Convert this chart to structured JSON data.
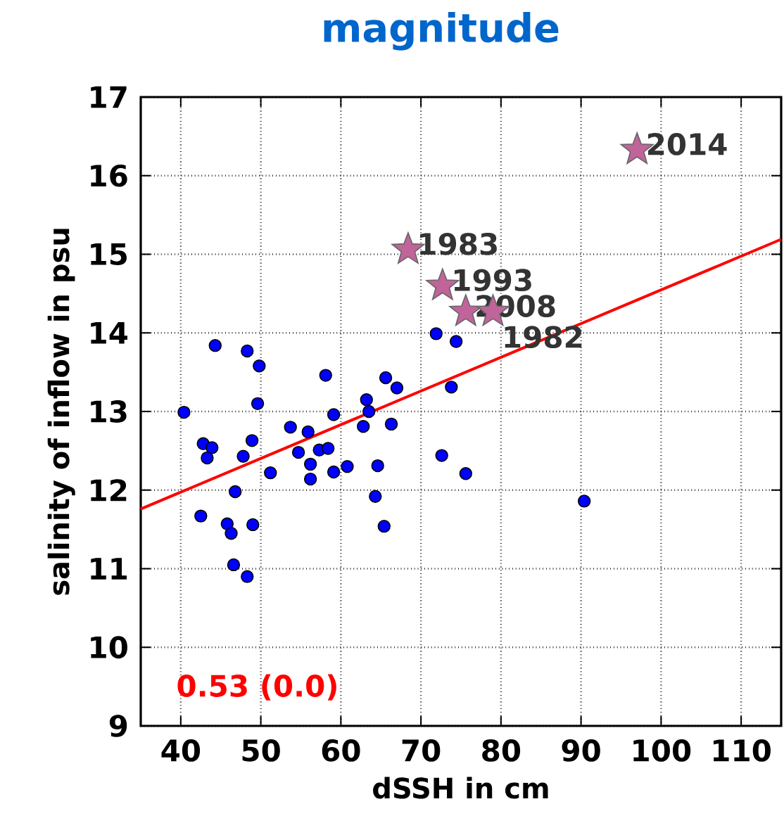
{
  "chart_data": {
    "type": "scatter",
    "title": "magnitude",
    "xlabel": "dSSH in cm",
    "ylabel": "salinity of inflow in psu",
    "xlim": [
      35,
      115
    ],
    "ylim": [
      9,
      17
    ],
    "xticks": [
      40,
      50,
      60,
      70,
      80,
      90,
      100,
      110
    ],
    "yticks": [
      9,
      10,
      11,
      12,
      13,
      14,
      15,
      16,
      17
    ],
    "grid": true,
    "series": [
      {
        "type": "scatter",
        "marker": "circle",
        "color": "#0000ff",
        "x": [
          44.3,
          48.3,
          49.8,
          58.1,
          40.4,
          49.6,
          65.6,
          67.0,
          63.2,
          59.1,
          63.5,
          62.8,
          66.3,
          53.7,
          55.9,
          42.8,
          43.9,
          43.3,
          48.9,
          47.8,
          54.7,
          57.3,
          58.4,
          56.2,
          59.1,
          60.8,
          51.2,
          56.2,
          64.6,
          64.3,
          65.4,
          46.8,
          42.5,
          45.8,
          46.3,
          49.0,
          46.6,
          48.3,
          71.9,
          74.4,
          73.8,
          72.6,
          75.6,
          90.4
        ],
        "values": [
          13.84,
          13.77,
          13.58,
          13.46,
          12.99,
          13.1,
          13.43,
          13.3,
          13.15,
          12.96,
          13.0,
          12.81,
          12.84,
          12.8,
          12.74,
          12.59,
          12.54,
          12.41,
          12.63,
          12.43,
          12.48,
          12.51,
          12.53,
          12.33,
          12.23,
          12.3,
          12.22,
          12.14,
          12.31,
          11.92,
          11.54,
          11.98,
          11.67,
          11.57,
          11.45,
          11.56,
          11.05,
          10.9,
          13.99,
          13.89,
          13.31,
          12.44,
          12.21,
          11.86
        ]
      },
      {
        "type": "scatter",
        "marker": "star",
        "color": "#c0649a",
        "x": [
          97.0,
          68.4,
          72.7,
          75.6,
          79.0
        ],
        "values": [
          16.33,
          15.06,
          14.6,
          14.27,
          14.27
        ]
      },
      {
        "type": "line",
        "marker": "none",
        "color": "#ff0000",
        "x": [
          35,
          115
        ],
        "values": [
          11.76,
          15.19
        ]
      }
    ],
    "annotations": [
      {
        "text": "2014",
        "x": 97.0,
        "y": 16.33
      },
      {
        "text": "1983",
        "x": 68.4,
        "y": 15.06
      },
      {
        "text": "1993",
        "x": 72.7,
        "y": 14.6
      },
      {
        "text": "2008",
        "x": 75.6,
        "y": 14.27
      },
      {
        "text": "1982",
        "x": 79.0,
        "y": 14.27
      },
      "0.53 (0.0)"
    ]
  }
}
